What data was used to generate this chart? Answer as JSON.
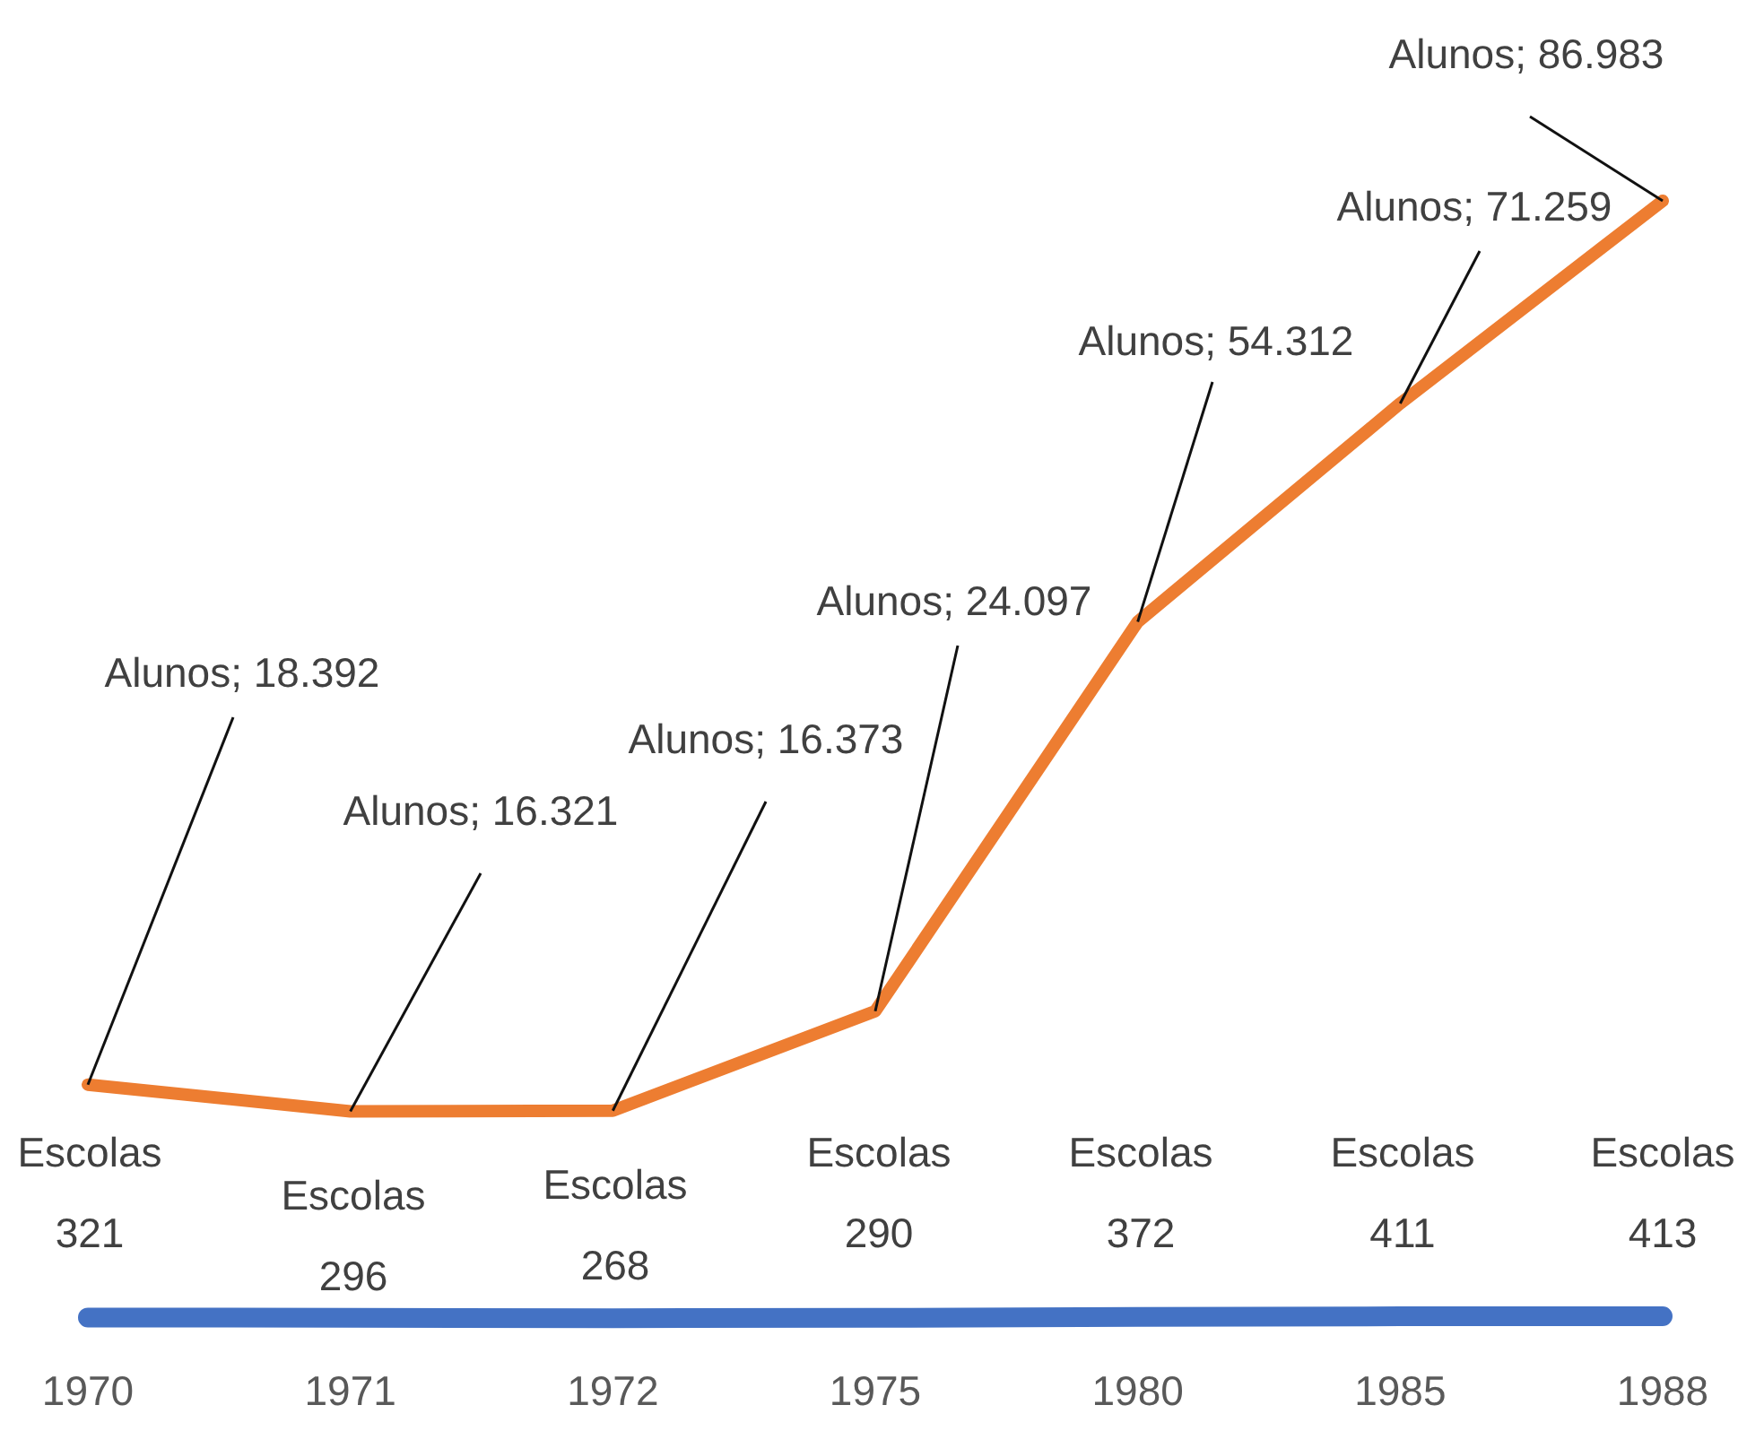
{
  "chart_data": {
    "type": "line",
    "categories": [
      "1970",
      "1971",
      "1972",
      "1975",
      "1980",
      "1985",
      "1988"
    ],
    "tick_labels": "x",
    "series": [
      {
        "color": "#ed7d31",
        "values": [
          18392,
          16321,
          16373,
          24097,
          54312,
          71259,
          86983
        ],
        "value_labels": [
          "Alunos; 18.392",
          "Alunos; 16.321",
          "Alunos; 16.373",
          "Alunos; 24.097",
          "Alunos; 54.312",
          "Alunos; 71.259",
          "Alunos; 86.983"
        ]
      },
      {
        "color": "#4472c4",
        "values": [
          321,
          296,
          268,
          290,
          372,
          411,
          413
        ],
        "value_labels": [
          "Escolas\n321",
          "Escolas\n296",
          "Escolas\n268",
          "Escolas\n290",
          "Escolas\n372",
          "Escolas\n411",
          "Escolas\n413"
        ]
      }
    ]
  }
}
